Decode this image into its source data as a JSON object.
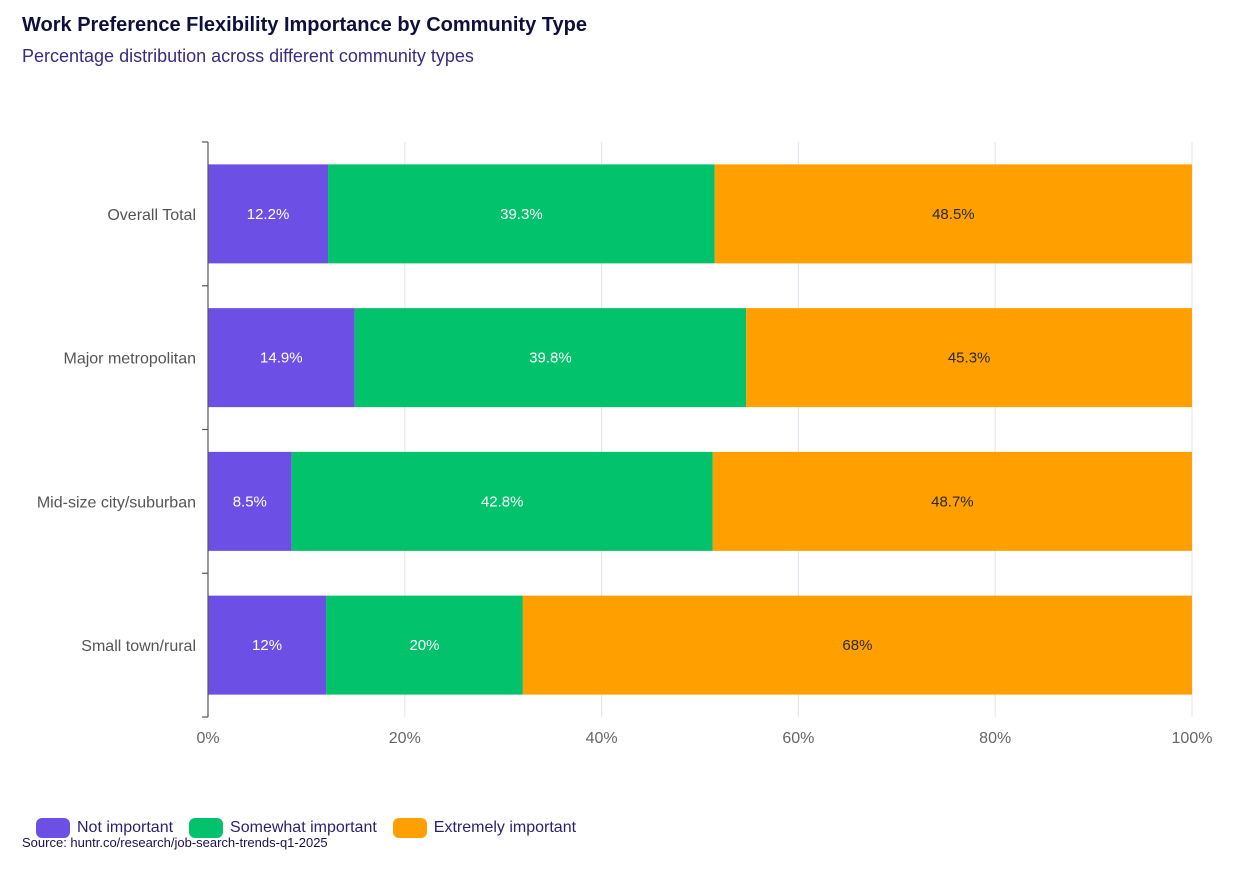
{
  "colors": {
    "not_important": "#6c50e6",
    "somewhat_important": "#02c26b",
    "extremely_important": "#ffa000",
    "grid": "#e3e3ef",
    "axis": "#555555",
    "tick_text": "#666666"
  },
  "chart_data": {
    "type": "bar",
    "orientation": "horizontal",
    "stacked": true,
    "title": "Work Preference Flexibility Importance by Community Type",
    "subtitle": "Percentage distribution across different community types",
    "categories": [
      "Overall Total",
      "Major metropolitan",
      "Mid-size city/suburban",
      "Small town/rural"
    ],
    "series": [
      {
        "name": "Not important",
        "values": [
          12.2,
          14.9,
          8.5,
          12
        ],
        "labels": [
          "12.2%",
          "14.9%",
          "8.5%",
          "12%"
        ]
      },
      {
        "name": "Somewhat important",
        "values": [
          39.3,
          39.8,
          42.8,
          20
        ],
        "labels": [
          "39.3%",
          "39.8%",
          "42.8%",
          "20%"
        ]
      },
      {
        "name": "Extremely important",
        "values": [
          48.5,
          45.3,
          48.7,
          68
        ],
        "labels": [
          "48.5%",
          "45.3%",
          "48.7%",
          "68%"
        ]
      }
    ],
    "x_ticks": [
      "0%",
      "20%",
      "40%",
      "60%",
      "80%",
      "100%"
    ],
    "xlim": [
      0,
      100
    ],
    "grid": true,
    "legend_position": "bottom-left"
  },
  "legend": {
    "items": [
      "Not important",
      "Somewhat important",
      "Extremely important"
    ]
  },
  "source": "Source: huntr.co/research/job-search-trends-q1-2025"
}
